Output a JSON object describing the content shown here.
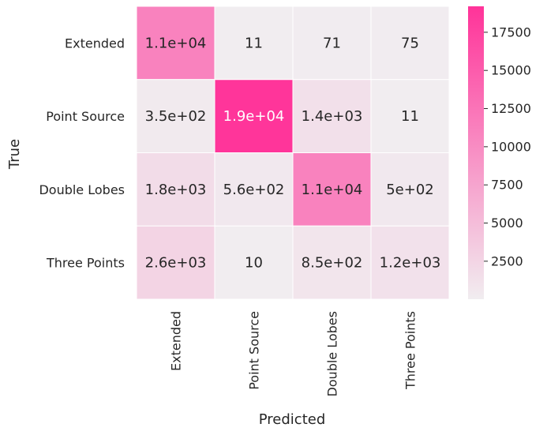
{
  "chart_data": {
    "type": "heatmap",
    "xlabel": "Predicted",
    "ylabel": "True",
    "x_categories": [
      "Extended",
      "Point Source",
      "Double Lobes",
      "Three Points"
    ],
    "y_categories": [
      "Extended",
      "Point Source",
      "Double Lobes",
      "Three Points"
    ],
    "values": [
      [
        11000,
        11,
        71,
        75
      ],
      [
        350,
        19000,
        1400,
        11
      ],
      [
        1800,
        560,
        11000,
        500
      ],
      [
        2600,
        10,
        850,
        1200
      ]
    ],
    "annotations": [
      [
        "1.1e+04",
        "11",
        "71",
        "75"
      ],
      [
        "3.5e+02",
        "1.9e+04",
        "1.4e+03",
        "11"
      ],
      [
        "1.8e+03",
        "5.6e+02",
        "1.1e+04",
        "5e+02"
      ],
      [
        "2.6e+03",
        "10",
        "8.5e+02",
        "1.2e+03"
      ]
    ],
    "colorbar": {
      "min": 10,
      "max": 19200,
      "ticks": [
        2500,
        5000,
        7500,
        10000,
        12500,
        15000,
        17500
      ],
      "tick_labels": [
        "2500",
        "5000",
        "7500",
        "10000",
        "12500",
        "15000",
        "17500"
      ],
      "color_low": "#f1edf0",
      "color_high": "#ff3399"
    },
    "colors": {
      "annotation_dark": "#262626",
      "annotation_light": "#ffffff",
      "label": "#262626"
    }
  }
}
